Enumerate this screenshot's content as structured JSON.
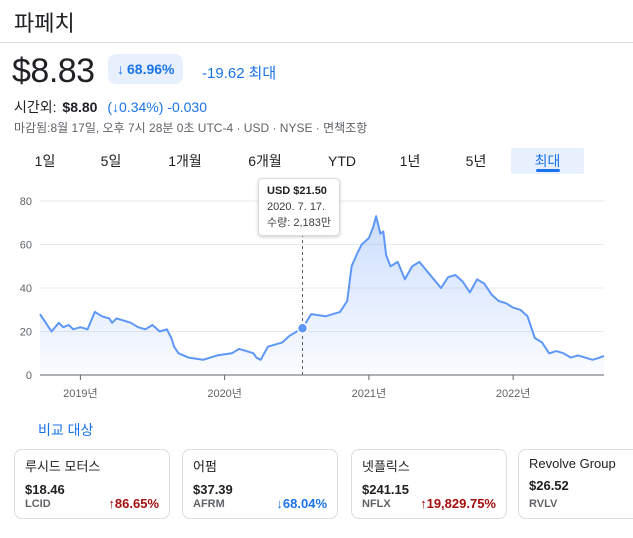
{
  "header": {
    "title": "파페치"
  },
  "quote": {
    "price": "$8.83",
    "pct_arrow": "↓",
    "pct": "68.96%",
    "change": "-19.62",
    "range_label": "최대"
  },
  "after_hours": {
    "label": "시간외:",
    "price": "$8.80",
    "pct": "(↓0.34%)",
    "change": "-0.030"
  },
  "meta": "마감됨:8월 17일, 오후 7시 28분 0초 UTC-4 · USD · NYSE · 면책조항",
  "tabs": [
    "1일",
    "5일",
    "1개월",
    "6개월",
    "YTD",
    "1년",
    "5년",
    "최대"
  ],
  "active_tab": "최대",
  "tooltip": {
    "price": "USD $21.50",
    "date": "2020. 7. 17.",
    "volume": "수량: 2,183만"
  },
  "compare_label": "비교 대상",
  "colors": {
    "accent": "#1a73e8",
    "line": "#5e97f6",
    "up": "#a50e0e",
    "down": "#1a73e8"
  },
  "cards": [
    {
      "name": "루시드 모터스",
      "price": "$18.46",
      "ticker": "LCID",
      "arrow": "↑",
      "change": "86.65%",
      "dir": "up"
    },
    {
      "name": "어펌",
      "price": "$37.39",
      "ticker": "AFRM",
      "arrow": "↓",
      "change": "68.04%",
      "dir": "down"
    },
    {
      "name": "넷플릭스",
      "price": "$241.15",
      "ticker": "NFLX",
      "arrow": "↑",
      "change": "19,829.75%",
      "dir": "up"
    },
    {
      "name": "Revolve Group",
      "price": "$26.52",
      "ticker": "RVLV",
      "arrow": "↓",
      "change": "",
      "dir": "down"
    }
  ],
  "chart_data": {
    "type": "area",
    "ylim": [
      0,
      80
    ],
    "yticks": [
      0,
      20,
      40,
      60,
      80
    ],
    "xticks": [
      "2019년",
      "2020년",
      "2021년",
      "2022년"
    ],
    "x_start": 2018.72,
    "x_end": 2022.63,
    "grid": true,
    "highlight": {
      "x": 2020.54,
      "y": 21.5
    },
    "x": [
      2018.72,
      2018.75,
      2018.8,
      2018.85,
      2018.88,
      2018.92,
      2018.95,
      2019.0,
      2019.05,
      2019.1,
      2019.15,
      2019.2,
      2019.22,
      2019.25,
      2019.3,
      2019.35,
      2019.4,
      2019.45,
      2019.5,
      2019.55,
      2019.6,
      2019.63,
      2019.65,
      2019.68,
      2019.75,
      2019.85,
      2019.95,
      2020.05,
      2020.1,
      2020.15,
      2020.2,
      2020.22,
      2020.25,
      2020.3,
      2020.35,
      2020.4,
      2020.45,
      2020.5,
      2020.54,
      2020.6,
      2020.7,
      2020.8,
      2020.85,
      2020.88,
      2020.92,
      2020.95,
      2021.0,
      2021.03,
      2021.05,
      2021.08,
      2021.1,
      2021.12,
      2021.15,
      2021.2,
      2021.25,
      2021.3,
      2021.35,
      2021.4,
      2021.45,
      2021.5,
      2021.55,
      2021.6,
      2021.65,
      2021.7,
      2021.75,
      2021.8,
      2021.85,
      2021.9,
      2021.95,
      2022.0,
      2022.05,
      2022.1,
      2022.15,
      2022.2,
      2022.25,
      2022.3,
      2022.35,
      2022.4,
      2022.45,
      2022.5,
      2022.55,
      2022.6,
      2022.63
    ],
    "y": [
      28,
      25,
      20,
      24,
      22,
      23,
      21,
      22,
      21,
      29,
      27,
      26,
      24,
      26,
      25,
      24,
      22,
      21,
      23,
      20,
      21,
      17,
      13,
      10,
      8,
      7,
      9,
      10,
      12,
      11,
      10,
      8,
      7,
      13,
      14,
      15,
      18,
      20,
      21.5,
      28,
      27,
      29,
      34,
      50,
      56,
      60,
      63,
      68,
      73,
      65,
      66,
      55,
      50,
      52,
      44,
      50,
      52,
      48,
      44,
      40,
      45,
      46,
      43,
      38,
      44,
      42,
      37,
      34,
      33,
      31,
      30,
      27,
      17,
      15,
      10,
      11,
      10,
      8,
      9,
      8,
      7,
      8,
      8.8
    ]
  }
}
